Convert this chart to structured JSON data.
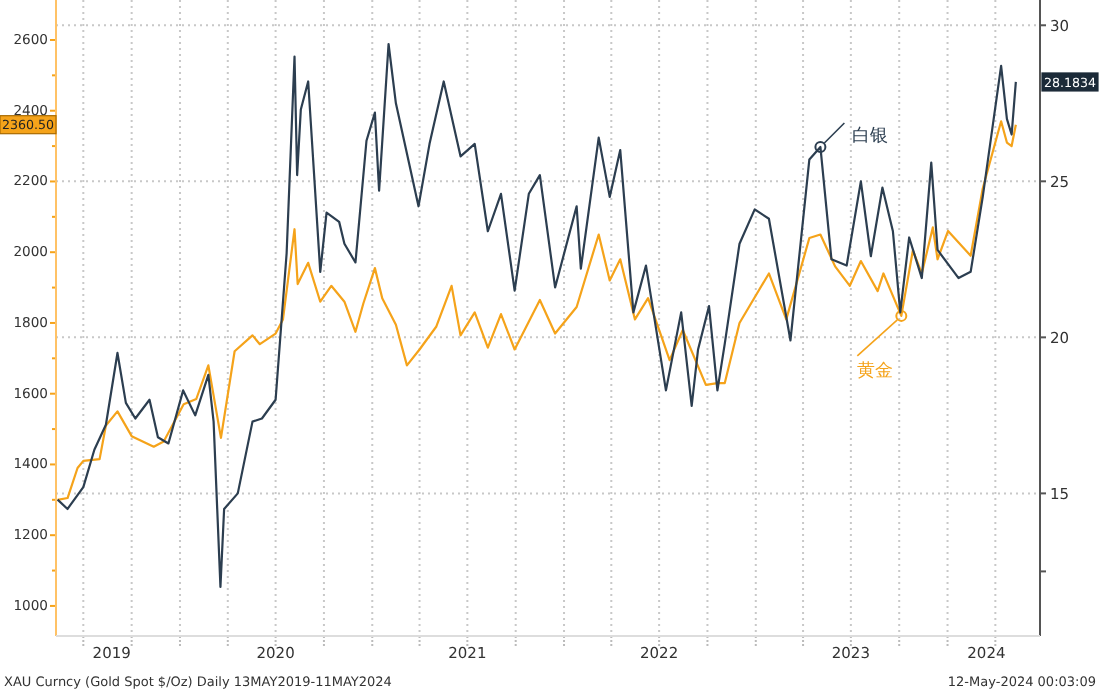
{
  "chart_data": {
    "type": "line",
    "grid": true,
    "marker": "none",
    "line_style": "solid",
    "xlim": [
      "2019-05-10",
      "2024-06-25"
    ],
    "xticks": [
      {
        "value": "2019-07-01",
        "label": null
      },
      {
        "value": "2019-10-01",
        "label": null
      },
      {
        "value": "2020-01-01",
        "label": null
      },
      {
        "value": "2020-04-01",
        "label": null
      },
      {
        "value": "2020-07-01",
        "label": null
      },
      {
        "value": "2020-10-01",
        "label": null
      },
      {
        "value": "2021-01-01",
        "label": null
      },
      {
        "value": "2021-04-01",
        "label": null
      },
      {
        "value": "2021-07-01",
        "label": null
      },
      {
        "value": "2021-10-01",
        "label": null
      },
      {
        "value": "2022-01-01",
        "label": null
      },
      {
        "value": "2022-04-01",
        "label": null
      },
      {
        "value": "2022-07-01",
        "label": null
      },
      {
        "value": "2022-10-01",
        "label": null
      },
      {
        "value": "2023-01-01",
        "label": null
      },
      {
        "value": "2023-04-01",
        "label": null
      },
      {
        "value": "2023-07-01",
        "label": null
      },
      {
        "value": "2023-10-01",
        "label": null
      },
      {
        "value": "2024-01-01",
        "label": null
      },
      {
        "value": "2024-04-01",
        "label": null
      },
      {
        "value": "2019-08-24",
        "label": "2019"
      },
      {
        "value": "2020-07-01",
        "label": "2020"
      },
      {
        "value": "2021-07-01",
        "label": "2021"
      },
      {
        "value": "2022-07-01",
        "label": "2022"
      },
      {
        "value": "2023-07-01",
        "label": "2023"
      },
      {
        "value": "2024-03-15",
        "label": "2024"
      }
    ],
    "ylim": [
      915,
      2713
    ],
    "yticks": [
      1000,
      {
        "value": 1100,
        "label": null
      },
      1200,
      {
        "value": 1300,
        "label": null
      },
      1400,
      {
        "value": 1500,
        "label": null
      },
      1600,
      {
        "value": 1700,
        "label": null
      },
      1800,
      {
        "value": 1900,
        "label": null
      },
      2000,
      {
        "value": 2100,
        "label": null
      },
      2200,
      {
        "value": 2300,
        "label": null
      },
      2400,
      {
        "value": 2500,
        "label": null
      },
      2600
    ],
    "y2lim": [
      10.43,
      30.81
    ],
    "y2ticks": [
      {
        "value": 12.5,
        "label": null
      },
      15,
      20,
      25,
      30
    ],
    "annotations": [
      "XAU Curncy (Gold Spot  $/Oz)  Daily 13MAY2019-11MAY2024",
      "12-May-2024 00:03:09",
      "2360.50",
      "28.1834"
    ],
    "series": [
      {
        "name": "黄金",
        "color": "#f5a31a",
        "axis": "y",
        "x": [
          "2019-05-13",
          "2019-06-01",
          "2019-06-20",
          "2019-07-01",
          "2019-08-01",
          "2019-08-13",
          "2019-09-04",
          "2019-10-01",
          "2019-11-12",
          "2019-12-01",
          "2020-01-08",
          "2020-02-01",
          "2020-02-24",
          "2020-03-19",
          "2020-04-14",
          "2020-05-18",
          "2020-06-01",
          "2020-07-01",
          "2020-07-15",
          "2020-08-06",
          "2020-08-12",
          "2020-09-01",
          "2020-09-24",
          "2020-10-15",
          "2020-11-09",
          "2020-11-30",
          "2020-12-15",
          "2021-01-06",
          "2021-01-20",
          "2021-02-15",
          "2021-03-08",
          "2021-04-01",
          "2021-05-03",
          "2021-06-01",
          "2021-06-18",
          "2021-07-15",
          "2021-08-09",
          "2021-09-03",
          "2021-09-29",
          "2021-11-16",
          "2021-12-15",
          "2022-01-25",
          "2022-03-08",
          "2022-03-29",
          "2022-04-18",
          "2022-05-16",
          "2022-06-10",
          "2022-07-21",
          "2022-08-15",
          "2022-09-28",
          "2022-10-20",
          "2022-11-03",
          "2022-12-01",
          "2023-01-26",
          "2023-02-28",
          "2023-04-13",
          "2023-05-04",
          "2023-06-01",
          "2023-06-29",
          "2023-07-20",
          "2023-08-21",
          "2023-09-01",
          "2023-10-05",
          "2023-10-27",
          "2023-11-13",
          "2023-12-04",
          "2023-12-13",
          "2024-01-02",
          "2024-02-14",
          "2024-03-08",
          "2024-04-12",
          "2024-04-23",
          "2024-05-02",
          "2024-05-10"
        ],
        "values": [
          1300,
          1305,
          1390,
          1410,
          1415,
          1510,
          1550,
          1480,
          1450,
          1465,
          1570,
          1585,
          1680,
          1475,
          1720,
          1765,
          1740,
          1770,
          1810,
          2065,
          1910,
          1970,
          1860,
          1905,
          1860,
          1775,
          1855,
          1955,
          1870,
          1795,
          1680,
          1725,
          1790,
          1905,
          1765,
          1830,
          1730,
          1825,
          1725,
          1865,
          1770,
          1845,
          2050,
          1920,
          1980,
          1810,
          1870,
          1695,
          1780,
          1625,
          1630,
          1630,
          1800,
          1940,
          1810,
          2040,
          2050,
          1960,
          1905,
          1975,
          1890,
          1940,
          1820,
          2005,
          1940,
          2070,
          1980,
          2060,
          1990,
          2180,
          2370,
          2310,
          2300,
          2360.5
        ]
      },
      {
        "name": "白银",
        "color": "#2c3e50",
        "axis": "y2",
        "x": [
          "2019-05-13",
          "2019-06-01",
          "2019-07-01",
          "2019-07-22",
          "2019-08-13",
          "2019-09-04",
          "2019-09-20",
          "2019-10-08",
          "2019-11-04",
          "2019-11-20",
          "2019-12-10",
          "2020-01-07",
          "2020-01-30",
          "2020-02-24",
          "2020-03-05",
          "2020-03-18",
          "2020-03-25",
          "2020-04-20",
          "2020-05-18",
          "2020-06-05",
          "2020-07-01",
          "2020-07-22",
          "2020-08-06",
          "2020-08-11",
          "2020-08-18",
          "2020-09-01",
          "2020-09-24",
          "2020-10-06",
          "2020-10-30",
          "2020-11-09",
          "2020-11-30",
          "2020-12-21",
          "2021-01-06",
          "2021-01-14",
          "2021-02-01",
          "2021-02-15",
          "2021-03-30",
          "2021-04-20",
          "2021-05-17",
          "2021-06-18",
          "2021-07-15",
          "2021-08-09",
          "2021-09-03",
          "2021-09-29",
          "2021-10-26",
          "2021-11-16",
          "2021-12-15",
          "2022-01-25",
          "2022-02-02",
          "2022-03-08",
          "2022-03-29",
          "2022-04-18",
          "2022-05-13",
          "2022-06-06",
          "2022-07-14",
          "2022-08-12",
          "2022-09-01",
          "2022-09-13",
          "2022-10-04",
          "2022-10-20",
          "2022-11-03",
          "2022-12-01",
          "2022-12-30",
          "2023-01-26",
          "2023-03-08",
          "2023-04-13",
          "2023-05-04",
          "2023-05-25",
          "2023-06-23",
          "2023-07-20",
          "2023-08-08",
          "2023-08-30",
          "2023-09-19",
          "2023-10-03",
          "2023-10-20",
          "2023-11-13",
          "2023-12-01",
          "2023-12-13",
          "2024-01-22",
          "2024-02-14",
          "2024-03-08",
          "2024-04-12",
          "2024-04-23",
          "2024-05-02",
          "2024-05-10"
        ],
        "values": [
          14.8,
          14.5,
          15.2,
          16.4,
          17.2,
          19.5,
          17.9,
          17.4,
          18.0,
          16.8,
          16.6,
          18.3,
          17.5,
          18.8,
          17.3,
          12.0,
          14.5,
          15.0,
          17.3,
          17.4,
          18.0,
          22.7,
          29.0,
          25.2,
          27.3,
          28.2,
          22.1,
          24.0,
          23.7,
          23.0,
          22.4,
          26.3,
          27.2,
          24.7,
          29.4,
          27.5,
          24.2,
          26.2,
          28.2,
          25.8,
          26.2,
          23.4,
          24.6,
          21.5,
          24.6,
          25.2,
          21.6,
          24.2,
          22.2,
          26.4,
          24.5,
          26.0,
          20.8,
          22.3,
          18.3,
          20.8,
          17.8,
          19.6,
          21.0,
          18.3,
          19.8,
          23.0,
          24.1,
          23.8,
          19.9,
          25.7,
          26.1,
          22.5,
          22.3,
          25.0,
          22.6,
          24.8,
          23.4,
          20.8,
          23.2,
          21.9,
          25.6,
          22.8,
          21.9,
          22.1,
          24.5,
          28.7,
          27.0,
          26.5,
          28.1834
        ]
      }
    ]
  }
}
